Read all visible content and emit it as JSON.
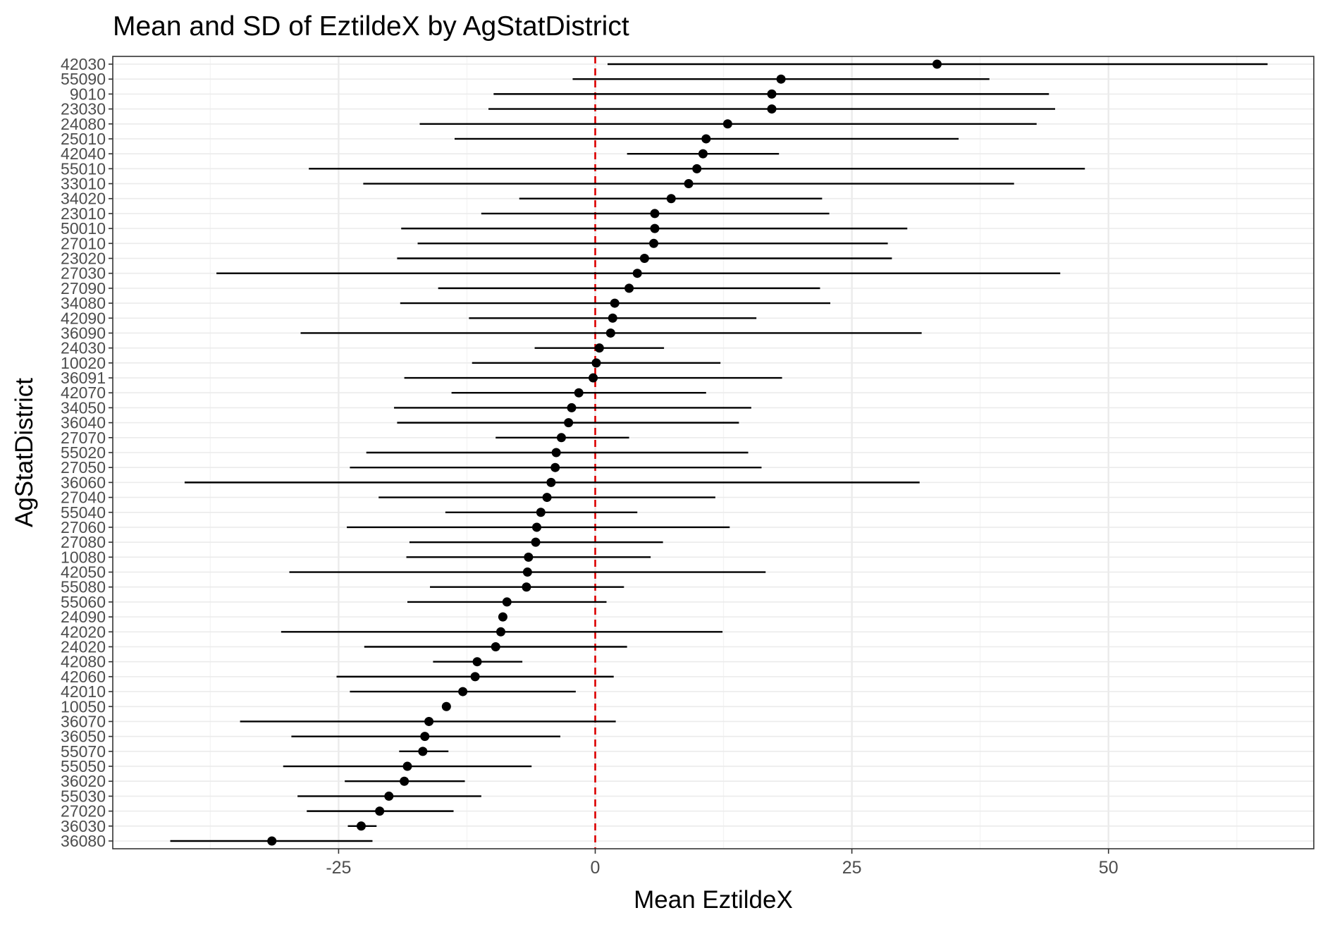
{
  "chart_data": {
    "type": "scatter",
    "title": "Mean and SD of EztildeX by AgStatDistrict",
    "xlabel": "Mean EztildeX",
    "ylabel": "AgStatDistrict",
    "xlim": [
      -47,
      70
    ],
    "x_ticks": [
      -25,
      0,
      25,
      50
    ],
    "x_tick_labels": [
      "-25",
      "0",
      "25",
      "50"
    ],
    "grid": true,
    "reference_line": {
      "x": 0,
      "color": "#dd0000",
      "style": "dashed"
    },
    "colors": {
      "point": "#000000",
      "errorbar": "#000000",
      "grid_major": "#ebebeb",
      "grid_minor": "#f3f3f3",
      "frame": "#333333"
    },
    "series": [
      {
        "district": "42030",
        "mean": 33.3,
        "lower": 1.2,
        "upper": 65.5
      },
      {
        "district": "55090",
        "mean": 18.1,
        "lower": -2.2,
        "upper": 38.4
      },
      {
        "district": "9010",
        "mean": 17.2,
        "lower": -9.9,
        "upper": 44.2
      },
      {
        "district": "23030",
        "mean": 17.2,
        "lower": -10.4,
        "upper": 44.8
      },
      {
        "district": "24080",
        "mean": 12.9,
        "lower": -17.1,
        "upper": 43.0
      },
      {
        "district": "25010",
        "mean": 10.8,
        "lower": -13.7,
        "upper": 35.4
      },
      {
        "district": "42040",
        "mean": 10.5,
        "lower": 3.1,
        "upper": 17.9
      },
      {
        "district": "55010",
        "mean": 9.9,
        "lower": -27.9,
        "upper": 47.7
      },
      {
        "district": "33010",
        "mean": 9.1,
        "lower": -22.6,
        "upper": 40.8
      },
      {
        "district": "34020",
        "mean": 7.4,
        "lower": -7.4,
        "upper": 22.1
      },
      {
        "district": "23010",
        "mean": 5.8,
        "lower": -11.1,
        "upper": 22.8
      },
      {
        "district": "50010",
        "mean": 5.8,
        "lower": -18.9,
        "upper": 30.4
      },
      {
        "district": "27010",
        "mean": 5.7,
        "lower": -17.3,
        "upper": 28.5
      },
      {
        "district": "23020",
        "mean": 4.8,
        "lower": -19.3,
        "upper": 28.9
      },
      {
        "district": "27030",
        "mean": 4.1,
        "lower": -36.9,
        "upper": 45.3
      },
      {
        "district": "27090",
        "mean": 3.3,
        "lower": -15.3,
        "upper": 21.9
      },
      {
        "district": "34080",
        "mean": 1.9,
        "lower": -19.0,
        "upper": 22.9
      },
      {
        "district": "42090",
        "mean": 1.7,
        "lower": -12.3,
        "upper": 15.7
      },
      {
        "district": "36090",
        "mean": 1.5,
        "lower": -28.7,
        "upper": 31.8
      },
      {
        "district": "24030",
        "mean": 0.4,
        "lower": -5.9,
        "upper": 6.7
      },
      {
        "district": "10020",
        "mean": 0.1,
        "lower": -12.0,
        "upper": 12.2
      },
      {
        "district": "36091",
        "mean": -0.2,
        "lower": -18.6,
        "upper": 18.2
      },
      {
        "district": "42070",
        "mean": -1.6,
        "lower": -14.0,
        "upper": 10.8
      },
      {
        "district": "34050",
        "mean": -2.3,
        "lower": -19.6,
        "upper": 15.2
      },
      {
        "district": "36040",
        "mean": -2.6,
        "lower": -19.3,
        "upper": 14.0
      },
      {
        "district": "27070",
        "mean": -3.3,
        "lower": -9.7,
        "upper": 3.3
      },
      {
        "district": "55020",
        "mean": -3.8,
        "lower": -22.3,
        "upper": 14.9
      },
      {
        "district": "27050",
        "mean": -3.9,
        "lower": -23.9,
        "upper": 16.2
      },
      {
        "district": "36060",
        "mean": -4.3,
        "lower": -40.0,
        "upper": 31.6
      },
      {
        "district": "27040",
        "mean": -4.7,
        "lower": -21.1,
        "upper": 11.7
      },
      {
        "district": "55040",
        "mean": -5.3,
        "lower": -14.6,
        "upper": 4.1
      },
      {
        "district": "27060",
        "mean": -5.7,
        "lower": -24.2,
        "upper": 13.1
      },
      {
        "district": "27080",
        "mean": -5.8,
        "lower": -18.1,
        "upper": 6.6
      },
      {
        "district": "10080",
        "mean": -6.5,
        "lower": -18.4,
        "upper": 5.4
      },
      {
        "district": "42050",
        "mean": -6.6,
        "lower": -29.8,
        "upper": 16.6
      },
      {
        "district": "55080",
        "mean": -6.7,
        "lower": -16.1,
        "upper": 2.8
      },
      {
        "district": "55060",
        "mean": -8.6,
        "lower": -18.3,
        "upper": 1.1
      },
      {
        "district": "24090",
        "mean": -9.0,
        "lower": -9.0,
        "upper": -9.0
      },
      {
        "district": "42020",
        "mean": -9.2,
        "lower": -30.6,
        "upper": 12.4
      },
      {
        "district": "24020",
        "mean": -9.7,
        "lower": -22.5,
        "upper": 3.1
      },
      {
        "district": "42080",
        "mean": -11.5,
        "lower": -15.8,
        "upper": -7.1
      },
      {
        "district": "42060",
        "mean": -11.7,
        "lower": -25.2,
        "upper": 1.8
      },
      {
        "district": "42010",
        "mean": -12.9,
        "lower": -23.9,
        "upper": -1.9
      },
      {
        "district": "10050",
        "mean": -14.5,
        "lower": -14.5,
        "upper": -14.5
      },
      {
        "district": "36070",
        "mean": -16.2,
        "lower": -34.6,
        "upper": 2.0
      },
      {
        "district": "36050",
        "mean": -16.6,
        "lower": -29.6,
        "upper": -3.4
      },
      {
        "district": "55070",
        "mean": -16.8,
        "lower": -19.1,
        "upper": -14.3
      },
      {
        "district": "55050",
        "mean": -18.3,
        "lower": -30.4,
        "upper": -6.2
      },
      {
        "district": "36020",
        "mean": -18.6,
        "lower": -24.4,
        "upper": -12.7
      },
      {
        "district": "55030",
        "mean": -20.1,
        "lower": -29.0,
        "upper": -11.1
      },
      {
        "district": "27020",
        "mean": -21.0,
        "lower": -28.1,
        "upper": -13.8
      },
      {
        "district": "36030",
        "mean": -22.8,
        "lower": -24.1,
        "upper": -21.3
      },
      {
        "district": "36080",
        "mean": -31.5,
        "lower": -41.4,
        "upper": -21.7
      }
    ]
  }
}
